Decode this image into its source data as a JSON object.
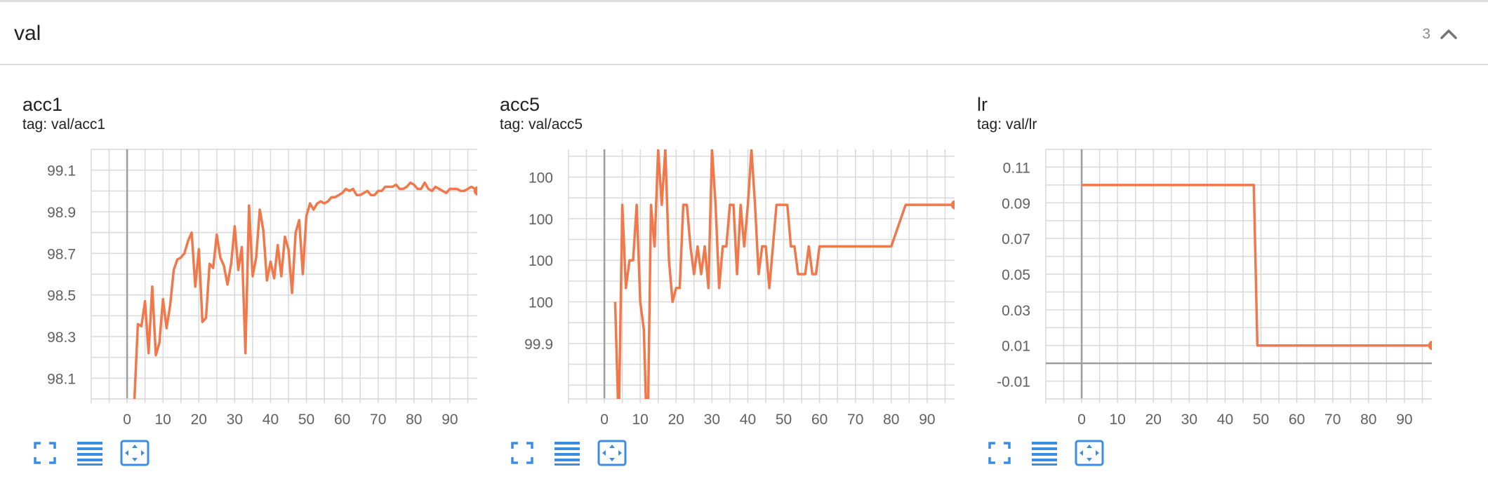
{
  "group": {
    "title": "val",
    "count": "3",
    "collapse_icon": "chevron-up-icon"
  },
  "tag_label": "tag:",
  "colors": {
    "series": "#f0784a",
    "grid": "#d9d9d9",
    "axis": "#9e9e9e",
    "tick_text": "#616161",
    "tool_icon": "#3c8ce6"
  },
  "toolbar_icons": [
    "fullscreen-icon",
    "toggle-y-log-icon",
    "fit-domain-icon"
  ],
  "chart_data": [
    {
      "type": "line",
      "title": "acc1",
      "tag": "val/acc1",
      "xlabel": "",
      "ylabel": "",
      "xlim": [
        -10,
        100
      ],
      "ylim": [
        98.0,
        99.2
      ],
      "x_ticks": [
        0,
        10,
        20,
        30,
        40,
        50,
        60,
        70,
        80,
        90
      ],
      "y_ticks": [
        98.1,
        98.3,
        98.5,
        98.7,
        98.9,
        99.1
      ],
      "grid": true,
      "end_marker": true,
      "series": [
        {
          "x": [
            2,
            3,
            4,
            5,
            6,
            7,
            8,
            9,
            10,
            11,
            12,
            13,
            14,
            15,
            16,
            17,
            18,
            19,
            20,
            21,
            22,
            23,
            24,
            25,
            26,
            27,
            28,
            29,
            30,
            31,
            32,
            33,
            34,
            35,
            36,
            37,
            38,
            39,
            40,
            41,
            42,
            43,
            44,
            45,
            46,
            47,
            48,
            49,
            50,
            51,
            52,
            53,
            54,
            55,
            56,
            57,
            58,
            59,
            60,
            61,
            62,
            63,
            64,
            65,
            66,
            67,
            68,
            69,
            70,
            71,
            72,
            73,
            74,
            75,
            76,
            77,
            78,
            79,
            80,
            81,
            82,
            83,
            84,
            85,
            86,
            87,
            88,
            89,
            90,
            91,
            92,
            93,
            94,
            95,
            96,
            97,
            98
          ],
          "y": [
            97.98,
            98.36,
            98.35,
            98.47,
            98.22,
            98.54,
            98.21,
            98.27,
            98.48,
            98.34,
            98.45,
            98.62,
            98.67,
            98.68,
            98.7,
            98.76,
            98.8,
            98.54,
            98.72,
            98.37,
            98.39,
            98.65,
            98.63,
            98.79,
            98.68,
            98.64,
            98.55,
            98.65,
            98.83,
            98.62,
            98.73,
            98.22,
            98.93,
            98.59,
            98.68,
            98.91,
            98.81,
            98.57,
            98.66,
            98.58,
            98.74,
            98.59,
            98.78,
            98.72,
            98.51,
            98.8,
            98.86,
            98.6,
            98.88,
            98.94,
            98.91,
            98.94,
            98.95,
            98.94,
            98.95,
            98.97,
            98.97,
            98.98,
            98.99,
            99.01,
            99.0,
            99.01,
            98.98,
            98.98,
            98.99,
            99.0,
            98.98,
            98.98,
            99.0,
            99.0,
            99.02,
            99.02,
            99.02,
            99.03,
            99.01,
            99.01,
            99.02,
            99.04,
            99.03,
            99.01,
            99.01,
            99.04,
            99.01,
            99.0,
            99.02,
            99.01,
            99.0,
            98.99,
            99.01,
            99.01,
            99.01,
            99.0,
            99.0,
            99.01,
            99.02,
            99.01,
            99.0
          ]
        }
      ]
    },
    {
      "type": "line",
      "title": "acc5",
      "tag": "val/acc5",
      "xlabel": "",
      "ylabel": "",
      "xlim": [
        -10,
        100
      ],
      "ylim": [
        99.86,
        100.04
      ],
      "x_ticks": [
        0,
        10,
        20,
        30,
        40,
        50,
        60,
        70,
        80,
        90
      ],
      "y_ticks": [
        99.9,
        99.93,
        99.96,
        99.99,
        100.02
      ],
      "y_tick_labels": [
        "99.9",
        "100",
        "100",
        "100",
        "100"
      ],
      "grid": true,
      "end_marker": true,
      "series": [
        {
          "x": [
            3,
            4,
            5,
            6,
            7,
            8,
            9,
            10,
            11,
            12,
            13,
            14,
            15,
            16,
            17,
            18,
            19,
            20,
            21,
            22,
            23,
            24,
            25,
            26,
            27,
            28,
            29,
            30,
            31,
            32,
            33,
            34,
            35,
            36,
            37,
            38,
            39,
            40,
            41,
            42,
            43,
            44,
            45,
            46,
            47,
            48,
            49,
            50,
            51,
            52,
            53,
            54,
            55,
            56,
            57,
            58,
            59,
            60,
            61,
            62,
            63,
            64,
            65,
            70,
            75,
            80,
            84,
            85,
            90,
            95,
            98
          ],
          "y": [
            99.93,
            99.84,
            100.0,
            99.94,
            99.96,
            99.96,
            100.0,
            99.93,
            99.91,
            99.82,
            100.0,
            99.97,
            100.04,
            100.0,
            100.04,
            99.96,
            99.93,
            99.94,
            99.94,
            100.0,
            100.0,
            99.97,
            99.95,
            99.97,
            99.95,
            99.97,
            99.94,
            100.04,
            100.0,
            99.94,
            99.97,
            99.97,
            100.0,
            100.0,
            99.95,
            100.0,
            99.97,
            100.0,
            100.04,
            100.0,
            99.95,
            99.97,
            99.97,
            99.94,
            99.97,
            100.0,
            100.0,
            100.0,
            100.0,
            99.97,
            99.97,
            99.95,
            99.95,
            99.95,
            99.97,
            99.95,
            99.95,
            99.97,
            99.97,
            99.97,
            99.97,
            99.97,
            99.97,
            99.97,
            99.97,
            99.97,
            100.0,
            100.0,
            100.0,
            100.0,
            100.0
          ]
        }
      ]
    },
    {
      "type": "line",
      "title": "lr",
      "tag": "val/lr",
      "xlabel": "",
      "ylabel": "",
      "xlim": [
        -10,
        100
      ],
      "ylim": [
        -0.02,
        0.12
      ],
      "x_ticks": [
        0,
        10,
        20,
        30,
        40,
        50,
        60,
        70,
        80,
        90
      ],
      "y_ticks": [
        -0.01,
        0.01,
        0.03,
        0.05,
        0.07,
        0.09,
        0.11
      ],
      "grid": true,
      "end_marker": true,
      "series": [
        {
          "x": [
            0,
            48,
            49,
            98
          ],
          "y": [
            0.1,
            0.1,
            0.01,
            0.01
          ]
        }
      ]
    }
  ]
}
